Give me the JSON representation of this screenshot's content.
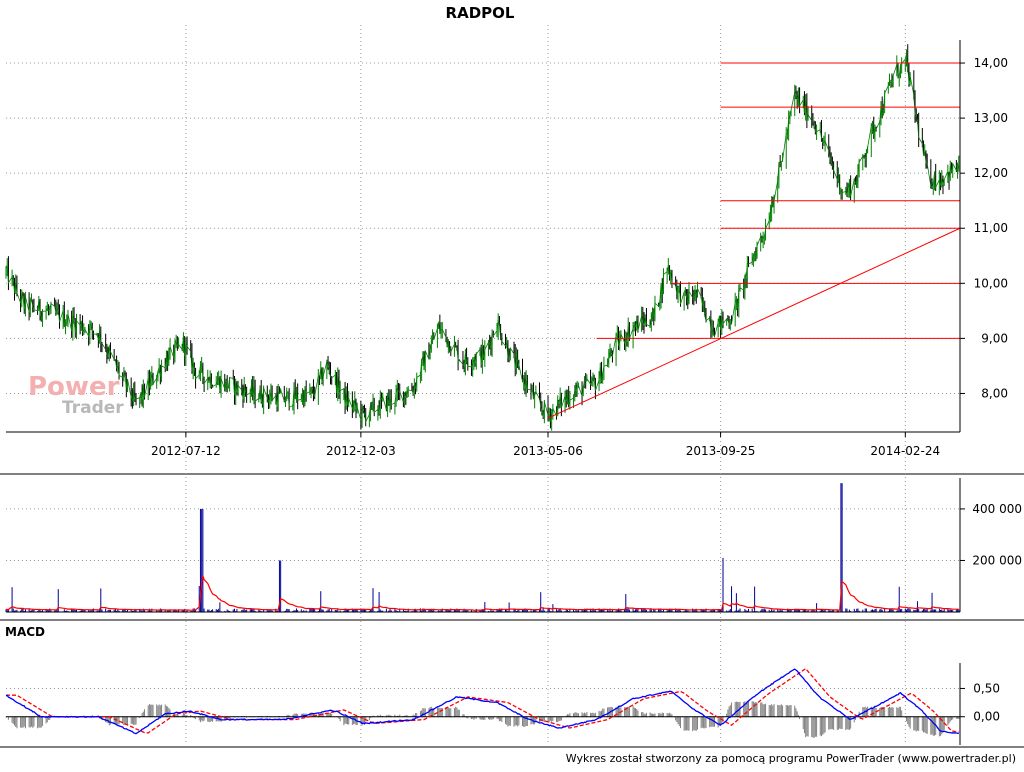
{
  "title": "RADPOL",
  "footer": "Wykres został stworzony za pomocą programu PowerTrader (www.powertrader.pl)",
  "watermark": {
    "line1": "Power",
    "line2": "Trader"
  },
  "macd_label": "MACD",
  "colors": {
    "price_up": "#008000",
    "price_down": "#000000",
    "horizontal_lines": "#ff0000",
    "trendline": "#ff0000",
    "volume_bars": "#000099",
    "volume_avg": "#ff0000",
    "macd_line": "#0000ff",
    "signal_line": "#ff0000",
    "histogram": "#808080",
    "grid": "#999999",
    "watermark_power": "#f4b0b0",
    "watermark_trader": "#b8b8b8"
  },
  "chart_data": [
    {
      "type": "line",
      "name": "price",
      "x_tick_labels": [
        "2012-07-12",
        "2012-12-03",
        "2013-05-06",
        "2013-09-25",
        "2014-02-24"
      ],
      "y_tick_labels": [
        "8,00",
        "9,00",
        "10,00",
        "11,00",
        "12,00",
        "13,00",
        "14,00"
      ],
      "ylim": [
        7.3,
        14.6
      ],
      "x_range": [
        "2012-02-15",
        "2014-04-10"
      ],
      "grid": true,
      "series": [
        {
          "values_daily_sampled": [
            [
              "2012-02-15",
              10.2
            ],
            [
              "2012-03-01",
              9.6
            ],
            [
              "2012-03-20",
              9.5
            ],
            [
              "2012-04-10",
              9.3
            ],
            [
              "2012-05-01",
              9.1
            ],
            [
              "2012-05-20",
              8.3
            ],
            [
              "2012-06-01",
              7.8
            ],
            [
              "2012-06-10",
              8.1
            ],
            [
              "2012-06-25",
              8.6
            ],
            [
              "2012-07-10",
              8.9
            ],
            [
              "2012-07-20",
              8.4
            ],
            [
              "2012-08-10",
              8.2
            ],
            [
              "2012-09-05",
              8.0
            ],
            [
              "2012-10-01",
              7.9
            ],
            [
              "2012-10-25",
              8.0
            ],
            [
              "2012-11-05",
              8.5
            ],
            [
              "2012-11-20",
              7.9
            ],
            [
              "2012-12-05",
              7.6
            ],
            [
              "2012-12-20",
              7.8
            ],
            [
              "2013-01-15",
              8.1
            ],
            [
              "2013-02-05",
              9.2
            ],
            [
              "2013-02-25",
              8.6
            ],
            [
              "2013-03-15",
              8.7
            ],
            [
              "2013-03-25",
              9.3
            ],
            [
              "2013-04-05",
              8.7
            ],
            [
              "2013-04-25",
              7.9
            ],
            [
              "2013-05-06",
              7.6
            ],
            [
              "2013-05-25",
              8.0
            ],
            [
              "2013-06-15",
              8.2
            ],
            [
              "2013-07-01",
              8.9
            ],
            [
              "2013-07-15",
              9.2
            ],
            [
              "2013-08-01",
              9.4
            ],
            [
              "2013-08-12",
              10.3
            ],
            [
              "2013-08-25",
              9.7
            ],
            [
              "2013-09-05",
              9.8
            ],
            [
              "2013-09-20",
              9.2
            ],
            [
              "2013-10-05",
              9.4
            ],
            [
              "2013-10-20",
              10.4
            ],
            [
              "2013-11-01",
              11.0
            ],
            [
              "2013-11-12",
              12.0
            ],
            [
              "2013-11-25",
              13.4
            ],
            [
              "2013-12-10",
              13.0
            ],
            [
              "2013-12-25",
              12.2
            ],
            [
              "2014-01-05",
              11.6
            ],
            [
              "2014-01-15",
              11.9
            ],
            [
              "2014-01-25",
              12.6
            ],
            [
              "2014-02-05",
              13.2
            ],
            [
              "2014-02-15",
              13.8
            ],
            [
              "2014-02-25",
              14.0
            ],
            [
              "2014-03-05",
              13.0
            ],
            [
              "2014-03-15",
              11.9
            ],
            [
              "2014-03-25",
              11.9
            ],
            [
              "2014-04-08",
              12.1
            ]
          ]
        }
      ],
      "horizontal_levels": [
        {
          "value": 14.0,
          "from": "2013-09-25"
        },
        {
          "value": 13.2,
          "from": "2013-09-25"
        },
        {
          "value": 11.5,
          "from": "2013-09-25"
        },
        {
          "value": 11.0,
          "from": "2013-09-25"
        },
        {
          "value": 10.0,
          "from": "2013-08-15"
        },
        {
          "value": 9.0,
          "from": "2013-06-15"
        }
      ],
      "trendline": {
        "from": [
          "2013-05-06",
          7.55
        ],
        "to": [
          "2014-04-10",
          11.0
        ]
      }
    },
    {
      "type": "bar",
      "name": "volume",
      "y_tick_labels": [
        "200 000",
        "400 000"
      ],
      "ylim": [
        0,
        520000
      ],
      "notable_spikes": [
        [
          "2012-07-25",
          400000
        ],
        [
          "2012-09-28",
          200000
        ],
        [
          "2013-09-28",
          210000
        ],
        [
          "2014-01-03",
          500000
        ]
      ],
      "typical_volume": 10000
    },
    {
      "type": "line",
      "name": "macd",
      "y_tick_labels": [
        "0,00",
        "0,50"
      ],
      "ylim": [
        -0.5,
        0.95
      ],
      "macd_sampled": [
        [
          "2012-02-15",
          0.38
        ],
        [
          "2012-03-15",
          0.0
        ],
        [
          "2012-05-01",
          0.0
        ],
        [
          "2012-06-01",
          -0.3
        ],
        [
          "2012-06-25",
          0.05
        ],
        [
          "2012-07-15",
          0.1
        ],
        [
          "2012-08-10",
          -0.05
        ],
        [
          "2012-10-01",
          -0.05
        ],
        [
          "2012-11-10",
          0.12
        ],
        [
          "2012-12-05",
          -0.12
        ],
        [
          "2013-01-15",
          -0.05
        ],
        [
          "2013-02-20",
          0.35
        ],
        [
          "2013-03-25",
          0.25
        ],
        [
          "2013-04-20",
          -0.05
        ],
        [
          "2013-05-15",
          -0.2
        ],
        [
          "2013-06-15",
          -0.05
        ],
        [
          "2013-07-15",
          0.32
        ],
        [
          "2013-08-15",
          0.45
        ],
        [
          "2013-09-05",
          0.1
        ],
        [
          "2013-09-25",
          -0.15
        ],
        [
          "2013-10-25",
          0.4
        ],
        [
          "2013-11-25",
          0.85
        ],
        [
          "2013-12-15",
          0.35
        ],
        [
          "2014-01-10",
          -0.05
        ],
        [
          "2014-02-01",
          0.2
        ],
        [
          "2014-02-20",
          0.42
        ],
        [
          "2014-03-10",
          0.1
        ],
        [
          "2014-03-25",
          -0.25
        ],
        [
          "2014-04-08",
          -0.3
        ]
      ],
      "signal_lag_days": 9
    }
  ]
}
